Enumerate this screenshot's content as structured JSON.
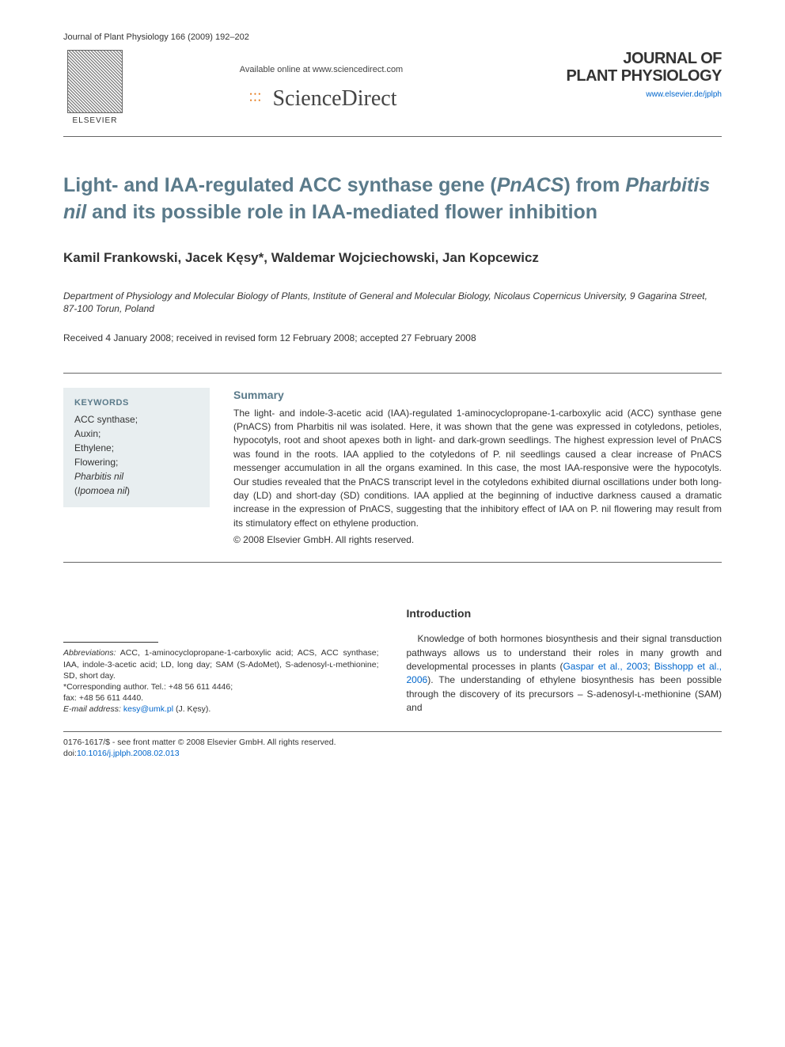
{
  "header": {
    "citation": "Journal of Plant Physiology 166 (2009) 192–202",
    "publisher_name": "ELSEVIER",
    "available_text": "Available online at www.sciencedirect.com",
    "platform_name": "ScienceDirect",
    "journal_title_line1": "JOURNAL OF",
    "journal_title_line2": "PLANT PHYSIOLOGY",
    "journal_url": "www.elsevier.de/jplph"
  },
  "article": {
    "title_part1": "Light- and IAA-regulated ACC synthase gene (",
    "title_italic1": "PnACS",
    "title_part2": ") from ",
    "title_italic2": "Pharbitis nil",
    "title_part3": " and its possible role in IAA-mediated flower inhibition",
    "authors": "Kamil Frankowski, Jacek Kęsy*, Waldemar Wojciechowski, Jan Kopcewicz",
    "affiliation": "Department of Physiology and Molecular Biology of Plants, Institute of General and Molecular Biology, Nicolaus Copernicus University, 9 Gagarina Street, 87-100 Torun, Poland",
    "dates": "Received 4 January 2008; received in revised form 12 February 2008; accepted 27 February 2008"
  },
  "keywords": {
    "heading": "KEYWORDS",
    "item1": "ACC synthase;",
    "item2": "Auxin;",
    "item3": "Ethylene;",
    "item4": "Flowering;",
    "item5_italic": "Pharbitis nil",
    "item6_open": "(",
    "item6_italic": "Ipomoea nil",
    "item6_close": ")"
  },
  "summary": {
    "heading": "Summary",
    "text": "The light- and indole-3-acetic acid (IAA)-regulated 1-aminocyclopropane-1-carboxylic acid (ACC) synthase gene (PnACS) from Pharbitis nil was isolated. Here, it was shown that the gene was expressed in cotyledons, petioles, hypocotyls, root and shoot apexes both in light- and dark-grown seedlings. The highest expression level of PnACS was found in the roots. IAA applied to the cotyledons of P. nil seedlings caused a clear increase of PnACS messenger accumulation in all the organs examined. In this case, the most IAA-responsive were the hypocotyls. Our studies revealed that the PnACS transcript level in the cotyledons exhibited diurnal oscillations under both long-day (LD) and short-day (SD) conditions. IAA applied at the beginning of inductive darkness caused a dramatic increase in the expression of PnACS, suggesting that the inhibitory effect of IAA on P. nil flowering may result from its stimulatory effect on ethylene production.",
    "copyright": "© 2008 Elsevier GmbH. All rights reserved."
  },
  "footnotes": {
    "abbrev_label": "Abbreviations:",
    "abbrev_text": " ACC, 1-aminocyclopropane-1-carboxylic acid; ACS, ACC synthase; IAA, indole-3-acetic acid; LD, long day; SAM (S-AdoMet), S-adenosyl-ʟ-methionine; SD, short day.",
    "corresp_prefix": "*Corresponding author. Tel.: +48 56 611 4446;",
    "corresp_fax": "fax: +48 56 611 4440.",
    "email_label": "E-mail address:",
    "email_value": "kesy@umk.pl",
    "email_name": " (J. Kęsy)."
  },
  "intro": {
    "heading": "Introduction",
    "text_part1": "Knowledge of both hormones biosynthesis and their signal transduction pathways allows us to understand their roles in many growth and developmental processes in plants (",
    "link1": "Gaspar et al., 2003",
    "text_part2": "; ",
    "link2": "Bisshopp et al., 2006",
    "text_part3": "). The understanding of ethylene biosynthesis has been possible through the discovery of its precursors – S-adenosyl-ʟ-methionine (SAM) and"
  },
  "footer": {
    "line1": "0176-1617/$ - see front matter © 2008 Elsevier GmbH. All rights reserved.",
    "doi_prefix": "doi:",
    "doi_link": "10.1016/j.jplph.2008.02.013"
  },
  "colors": {
    "heading_color": "#5a7a8a",
    "link_color": "#0066cc",
    "text_color": "#333333",
    "keywords_bg": "#e8eef0",
    "background": "#ffffff"
  }
}
